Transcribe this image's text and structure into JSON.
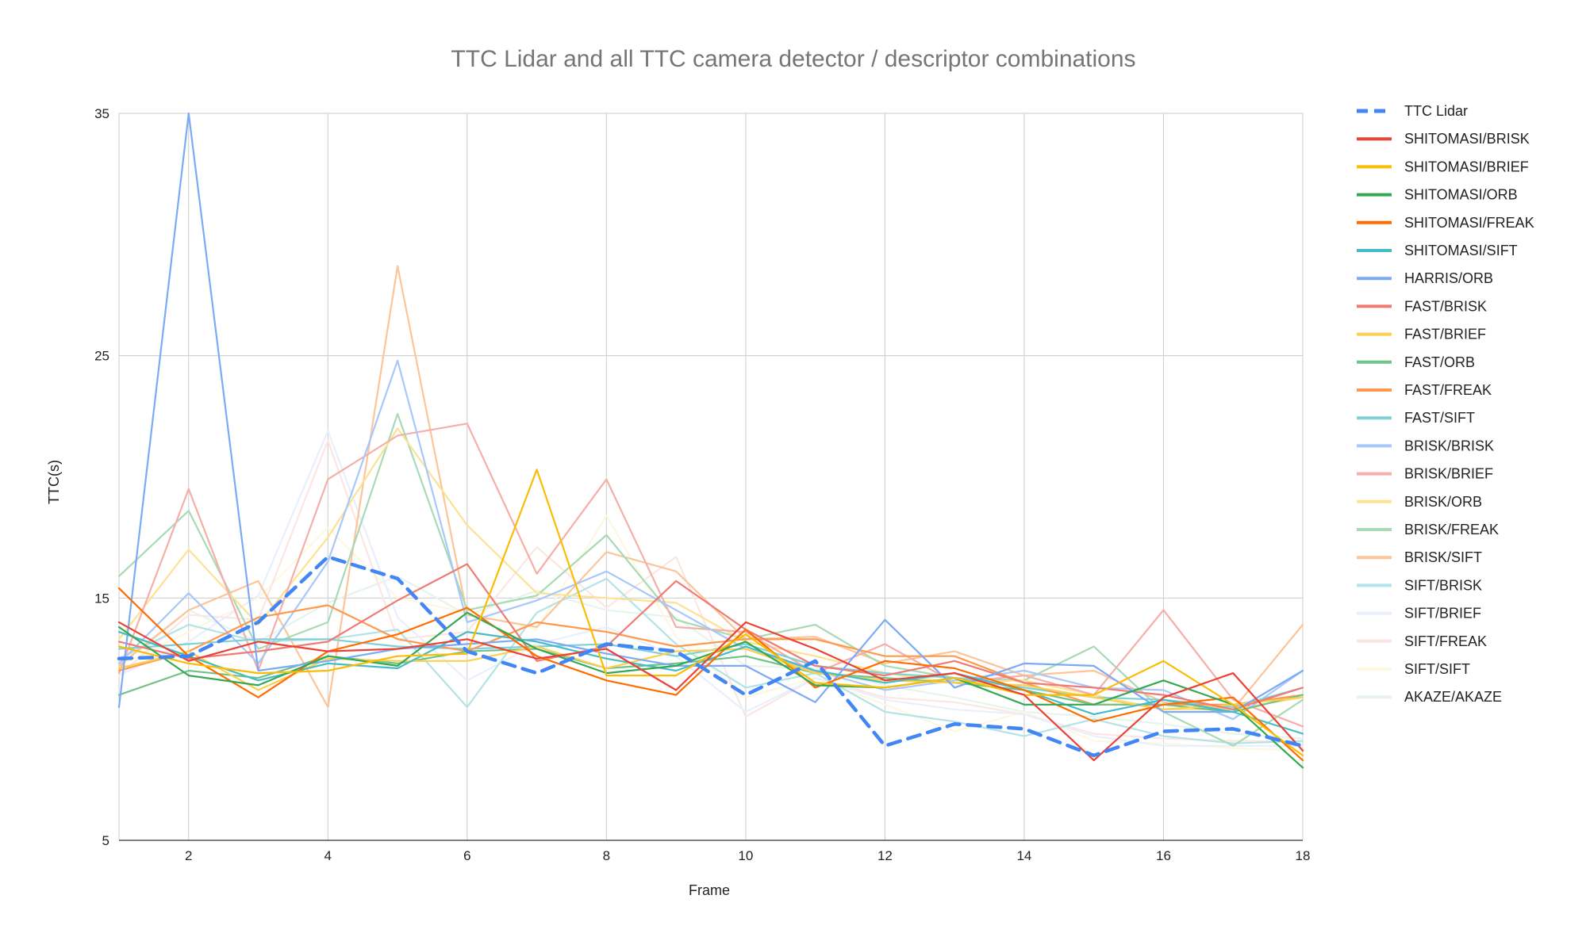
{
  "chart_data": {
    "type": "line",
    "title": "TTC Lidar and all TTC camera detector / descriptor combinations",
    "xlabel": "Frame",
    "ylabel": "TTC(s)",
    "xlim": [
      1,
      18
    ],
    "ylim": [
      5,
      35
    ],
    "x_ticks": [
      2,
      4,
      6,
      8,
      10,
      12,
      14,
      16,
      18
    ],
    "x_tick_labels": [
      "2",
      "4",
      "6",
      "8",
      "10",
      "12",
      "14",
      "16",
      "18"
    ],
    "y_ticks": [
      5,
      15,
      25,
      35
    ],
    "y_tick_labels": [
      "5",
      "15",
      "25",
      "35"
    ],
    "grid": true,
    "legend_position": "right",
    "x": [
      1,
      2,
      3,
      4,
      5,
      6,
      7,
      8,
      9,
      10,
      11,
      12,
      13,
      14,
      15,
      16,
      17,
      18
    ],
    "series": [
      {
        "name": "TTC Lidar",
        "color": "#4285F4",
        "dash": true,
        "values": [
          12.5,
          12.6,
          14.0,
          16.7,
          15.8,
          12.8,
          11.9,
          13.1,
          12.8,
          11.0,
          12.4,
          8.9,
          9.8,
          9.6,
          8.5,
          9.5,
          9.6,
          8.9
        ]
      },
      {
        "name": "SHITOMASI/BRISK",
        "color": "#EA4335",
        "values": [
          14.0,
          12.4,
          13.2,
          12.8,
          12.9,
          13.3,
          12.5,
          12.9,
          11.2,
          14.0,
          12.9,
          11.6,
          11.9,
          11.0,
          8.3,
          10.9,
          11.9,
          8.7
        ]
      },
      {
        "name": "SHITOMASI/BRIEF",
        "color": "#FBBC04",
        "values": [
          13.0,
          12.3,
          11.9,
          12.0,
          12.6,
          12.7,
          20.3,
          11.8,
          11.8,
          13.5,
          11.5,
          11.3,
          11.7,
          11.0,
          11.0,
          12.4,
          10.6,
          8.5
        ]
      },
      {
        "name": "SHITOMASI/ORB",
        "color": "#34A853",
        "values": [
          13.8,
          11.8,
          11.4,
          12.6,
          12.2,
          14.4,
          12.9,
          11.9,
          12.2,
          13.2,
          11.4,
          11.3,
          11.7,
          10.6,
          10.6,
          11.6,
          10.6,
          8.0
        ]
      },
      {
        "name": "SHITOMASI/FREAK",
        "color": "#FF6D01",
        "values": [
          15.4,
          12.6,
          10.9,
          12.8,
          13.5,
          14.6,
          12.6,
          11.6,
          11.0,
          13.7,
          11.3,
          12.4,
          12.1,
          11.2,
          9.9,
          10.6,
          10.9,
          8.3
        ]
      },
      {
        "name": "SHITOMASI/SIFT",
        "color": "#46BDC6",
        "values": [
          13.6,
          12.6,
          11.6,
          12.3,
          12.1,
          13.6,
          13.2,
          12.5,
          12.0,
          13.0,
          12.0,
          11.5,
          11.9,
          11.2,
          10.2,
          10.8,
          10.3,
          9.4
        ]
      },
      {
        "name": "HARRIS/ORB",
        "color": "#7BAAF7",
        "values": [
          10.5,
          35.0,
          12.0,
          12.4,
          12.9,
          13.1,
          13.3,
          12.7,
          12.2,
          12.2,
          10.7,
          14.1,
          11.3,
          12.3,
          12.2,
          10.3,
          10.3,
          12.0
        ]
      },
      {
        "name": "FAST/BRISK",
        "color": "#F07B72",
        "values": [
          13.2,
          12.5,
          12.8,
          13.2,
          14.9,
          16.4,
          12.4,
          13.0,
          15.7,
          13.7,
          12.2,
          11.8,
          12.4,
          11.5,
          11.3,
          11.0,
          10.4,
          11.3
        ]
      },
      {
        "name": "FAST/BRIEF",
        "color": "#FCD04F",
        "values": [
          12.1,
          12.8,
          11.2,
          12.5,
          12.4,
          12.4,
          13.0,
          12.1,
          12.8,
          12.9,
          11.9,
          11.6,
          11.5,
          11.4,
          10.9,
          10.4,
          10.6,
          10.9
        ]
      },
      {
        "name": "FAST/ORB",
        "color": "#71C287",
        "values": [
          11.0,
          12.0,
          11.7,
          12.6,
          12.3,
          12.8,
          12.9,
          12.1,
          12.3,
          12.6,
          11.9,
          11.7,
          11.5,
          11.2,
          10.6,
          10.6,
          10.3,
          11.0
        ]
      },
      {
        "name": "FAST/FREAK",
        "color": "#FF994D",
        "values": [
          12.0,
          12.8,
          14.2,
          14.7,
          13.3,
          12.8,
          14.0,
          13.6,
          13.0,
          13.3,
          13.3,
          12.6,
          12.6,
          11.5,
          10.6,
          10.6,
          10.6,
          11.0
        ]
      },
      {
        "name": "FAST/SIFT",
        "color": "#7ED1D7",
        "values": [
          12.9,
          13.1,
          13.3,
          13.3,
          13.0,
          12.9,
          13.0,
          13.1,
          12.6,
          13.1,
          12.2,
          11.9,
          11.7,
          11.3,
          10.9,
          10.8,
          10.5,
          11.3
        ]
      },
      {
        "name": "BRISK/BRISK",
        "color": "#A8C7FA",
        "values": [
          12.3,
          15.2,
          12.3,
          16.5,
          24.8,
          14.0,
          14.9,
          16.1,
          14.5,
          12.9,
          12.0,
          11.2,
          11.6,
          12.0,
          11.3,
          11.2,
          10.0,
          12.0
        ]
      },
      {
        "name": "BRISK/BRIEF",
        "color": "#F6AEA9",
        "values": [
          11.9,
          19.5,
          12.0,
          19.9,
          21.7,
          22.2,
          16.0,
          19.9,
          13.8,
          13.6,
          11.9,
          13.1,
          11.5,
          11.8,
          11.0,
          14.5,
          10.8,
          9.7
        ]
      },
      {
        "name": "BRISK/ORB",
        "color": "#FDE293",
        "values": [
          13.3,
          17.0,
          13.9,
          17.5,
          22.0,
          18.0,
          15.2,
          15.0,
          14.8,
          13.2,
          12.6,
          11.9,
          11.5,
          11.6,
          11.0,
          10.4,
          10.4,
          10.9
        ]
      },
      {
        "name": "BRISK/FREAK",
        "color": "#A8DAB5",
        "values": [
          15.9,
          18.6,
          12.9,
          14.0,
          22.6,
          14.5,
          15.1,
          17.6,
          14.1,
          13.3,
          13.9,
          12.2,
          11.7,
          11.6,
          13.0,
          10.3,
          8.9,
          10.8
        ]
      },
      {
        "name": "BRISK/SIFT",
        "color": "#FBC599",
        "values": [
          12.2,
          14.5,
          15.7,
          10.5,
          28.7,
          14.3,
          13.8,
          16.9,
          16.1,
          13.3,
          13.4,
          12.3,
          12.8,
          11.8,
          12.0,
          10.7,
          10.4,
          13.9
        ]
      },
      {
        "name": "SIFT/BRISK",
        "color": "#B2E3E6",
        "values": [
          12.5,
          13.9,
          13.2,
          13.3,
          13.7,
          10.5,
          14.4,
          15.8,
          13.1,
          11.3,
          11.9,
          10.3,
          9.9,
          9.3,
          10.0,
          9.3,
          9.0,
          9.1
        ]
      },
      {
        "name": "SIFT/BRIEF",
        "color": "#E8EFFD",
        "values": [
          11.8,
          13.2,
          15.1,
          21.9,
          14.2,
          11.6,
          13.1,
          13.8,
          12.6,
          10.3,
          11.7,
          10.8,
          10.4,
          10.2,
          9.3,
          8.9,
          8.9,
          8.9
        ]
      },
      {
        "name": "SIFT/FREAK",
        "color": "#FCE6E4",
        "values": [
          11.8,
          14.3,
          14.1,
          21.5,
          13.3,
          13.6,
          17.1,
          14.6,
          16.7,
          10.1,
          11.7,
          10.9,
          10.7,
          10.2,
          9.4,
          9.2,
          9.1,
          9.1
        ]
      },
      {
        "name": "SIFT/SIFT",
        "color": "#FEF7E0",
        "values": [
          12.2,
          13.6,
          15.0,
          17.9,
          15.0,
          14.4,
          13.7,
          18.4,
          13.4,
          10.9,
          11.7,
          10.6,
          9.5,
          10.3,
          9.1,
          9.0,
          8.8,
          8.7
        ]
      },
      {
        "name": "AKAZE/AKAZE",
        "color": "#E6F4EA",
        "values": [
          12.3,
          14.5,
          13.2,
          14.8,
          15.9,
          14.3,
          15.3,
          14.5,
          14.2,
          12.2,
          12.1,
          11.4,
          10.9,
          10.3,
          10.1,
          9.8,
          9.4,
          9.2
        ]
      }
    ]
  }
}
